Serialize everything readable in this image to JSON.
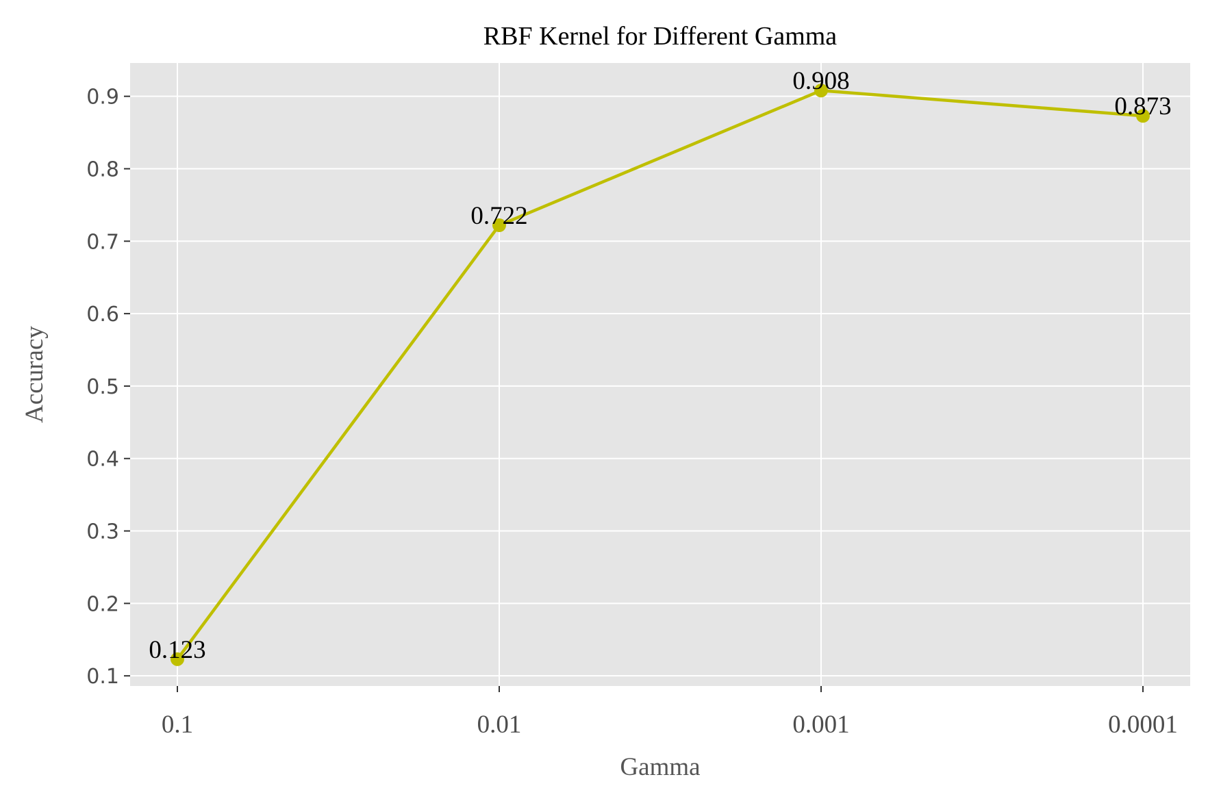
{
  "chart_data": {
    "type": "line",
    "title": "RBF Kernel for Different Gamma",
    "xlabel": "Gamma",
    "ylabel": "Accuracy",
    "categories": [
      "0.1",
      "0.01",
      "0.001",
      "0.0001"
    ],
    "series": [
      {
        "values": [
          0.123,
          0.722,
          0.908,
          0.873
        ],
        "color": "#bfbf00"
      }
    ],
    "data_labels": [
      "0.123",
      "0.722",
      "0.908",
      "0.873"
    ],
    "ylim": [
      0.086,
      0.946
    ],
    "yticks": [
      0.1,
      0.2,
      0.3,
      0.4,
      0.5,
      0.6,
      0.7,
      0.8,
      0.9
    ],
    "ytick_labels": [
      "0.1",
      "0.2",
      "0.3",
      "0.4",
      "0.5",
      "0.6",
      "0.7",
      "0.8",
      "0.9"
    ],
    "grid": true,
    "background_color": "#e5e5e5",
    "grid_color": "#ffffff"
  }
}
